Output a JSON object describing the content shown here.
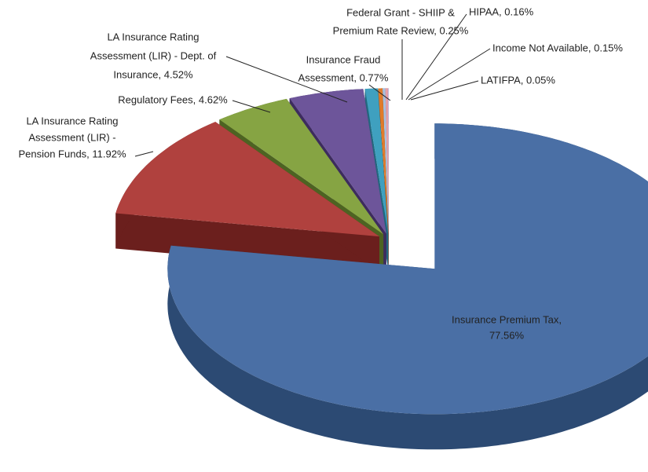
{
  "chart_data": {
    "type": "pie",
    "labels": [
      [
        "Insurance Premium Tax,",
        "77.56%"
      ],
      [
        "LA Insurance Rating",
        "Assessment (LIR) -",
        "Pension Funds, 11.92%"
      ],
      [
        "Regulatory Fees, 4.62%"
      ],
      [
        "LA Insurance Rating",
        "Assessment (LIR) - Dept. of",
        "Insurance, 4.52%"
      ],
      [
        "Insurance Fraud",
        "Assessment, 0.77%"
      ],
      [
        "Federal Grant - SHIIP &",
        "Premium Rate Review, 0.25%"
      ],
      [
        "HIPAA, 0.16%"
      ],
      [
        "Income Not Available, 0.15%"
      ],
      [
        "LATIFPA, 0.05%"
      ]
    ],
    "values": [
      77.56,
      11.92,
      4.62,
      4.52,
      0.77,
      0.25,
      0.16,
      0.15,
      0.05
    ],
    "colors": [
      "#4a6fa5",
      "#b0413e",
      "#86a443",
      "#6d559a",
      "#3fa0bf",
      "#e07b2a",
      "#a8c0de",
      "#e6a0a8",
      "#c9b6d8"
    ],
    "side_colors": [
      "#2c4a73",
      "#6b1f1d",
      "#4d6322",
      "#3d2c5e",
      "#22687f",
      "#8a4510",
      "#6d86a6",
      "#a0606a",
      "#8a7a99"
    ]
  }
}
